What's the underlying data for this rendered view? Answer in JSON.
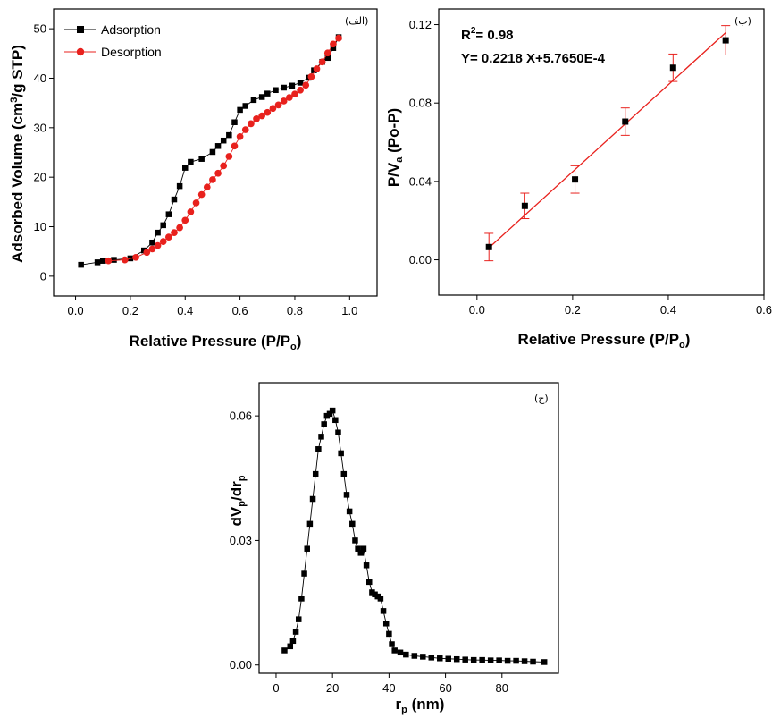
{
  "chart_data": [
    {
      "type": "line",
      "panel_label": "(الف)",
      "xlabel_main": "Relative Pressure (P/P",
      "xlabel_sub": "o",
      "xlabel_end": ")",
      "ylabel_main": "Adsorbed Volume (cm",
      "ylabel_sup": "3",
      "ylabel_end": "/g STP)",
      "xlim": [
        -0.08,
        1.1
      ],
      "ylim": [
        -4,
        54
      ],
      "xticks": [
        "0.0",
        "0.2",
        "0.4",
        "0.6",
        "0.8",
        "1.0"
      ],
      "xtick_values": [
        0.0,
        0.2,
        0.4,
        0.6,
        0.8,
        1.0
      ],
      "yticks": [
        "0",
        "10",
        "20",
        "30",
        "40",
        "50"
      ],
      "ytick_values": [
        0,
        10,
        20,
        30,
        40,
        50
      ],
      "legend_position": "top-left",
      "series": [
        {
          "name": "Adsorption",
          "color": "#000000",
          "marker": "square",
          "x": [
            0.02,
            0.08,
            0.1,
            0.14,
            0.2,
            0.25,
            0.28,
            0.3,
            0.32,
            0.34,
            0.36,
            0.38,
            0.4,
            0.42,
            0.46,
            0.5,
            0.52,
            0.54,
            0.56,
            0.58,
            0.6,
            0.62,
            0.65,
            0.68,
            0.7,
            0.73,
            0.76,
            0.79,
            0.82,
            0.85,
            0.87,
            0.9,
            0.92,
            0.94,
            0.96
          ],
          "y": [
            2.3,
            2.8,
            3.1,
            3.3,
            3.6,
            5.2,
            6.8,
            8.8,
            10.3,
            12.5,
            15.5,
            18.2,
            21.9,
            23.1,
            23.7,
            25.1,
            26.3,
            27.4,
            28.5,
            31.1,
            33.6,
            34.4,
            35.6,
            36.2,
            36.9,
            37.6,
            38.1,
            38.5,
            39.1,
            40.1,
            41.6,
            43.3,
            44.1,
            46.1,
            48.3
          ]
        },
        {
          "name": "Desorption",
          "color": "#e8211d",
          "marker": "circle",
          "x": [
            0.12,
            0.18,
            0.22,
            0.26,
            0.28,
            0.3,
            0.32,
            0.34,
            0.36,
            0.38,
            0.4,
            0.42,
            0.44,
            0.46,
            0.48,
            0.5,
            0.52,
            0.54,
            0.56,
            0.58,
            0.6,
            0.62,
            0.64,
            0.66,
            0.68,
            0.7,
            0.72,
            0.74,
            0.76,
            0.78,
            0.8,
            0.82,
            0.84,
            0.86,
            0.88,
            0.9,
            0.92,
            0.94,
            0.96
          ],
          "y": [
            3.1,
            3.3,
            3.8,
            4.8,
            5.5,
            6.2,
            7.0,
            7.9,
            8.8,
            9.8,
            11.3,
            13.0,
            14.8,
            16.5,
            18.0,
            19.5,
            20.8,
            22.3,
            24.2,
            26.3,
            28.2,
            29.6,
            30.8,
            31.8,
            32.4,
            33.1,
            33.9,
            34.6,
            35.4,
            36.1,
            36.8,
            37.6,
            38.6,
            40.3,
            41.9,
            43.3,
            45.1,
            46.9,
            48.1
          ]
        }
      ]
    },
    {
      "type": "scatter",
      "panel_label": "(ب)",
      "xlabel_main": "Relative Pressure (P/P",
      "xlabel_sub": "o",
      "xlabel_end": ")",
      "ylabel_main": "P/V",
      "ylabel_sub": "a",
      "ylabel_end": " (Po-P)",
      "xlim": [
        -0.08,
        0.6
      ],
      "ylim": [
        -0.018,
        0.128
      ],
      "xticks": [
        "0.0",
        "0.2",
        "0.4",
        "0.6"
      ],
      "xtick_values": [
        0.0,
        0.2,
        0.4,
        0.6
      ],
      "yticks": [
        "0.00",
        "0.04",
        "0.08",
        "0.12"
      ],
      "ytick_values": [
        0.0,
        0.04,
        0.08,
        0.12
      ],
      "annotation_r2_main": "R",
      "annotation_r2_sup": "2",
      "annotation_r2_end": "= 0.98",
      "annotation_equation": "Y= 0.2218 X+5.7650E-4",
      "fit": {
        "slope": 0.2218,
        "intercept": 0.0005765,
        "x_range": [
          0.025,
          0.52
        ],
        "color": "#e8211d"
      },
      "series": [
        {
          "name": "",
          "color": "#000000",
          "marker": "square",
          "x": [
            0.025,
            0.1,
            0.205,
            0.31,
            0.41,
            0.52
          ],
          "y": [
            0.0065,
            0.0275,
            0.041,
            0.0705,
            0.098,
            0.112
          ],
          "error": [
            0.007,
            0.0065,
            0.007,
            0.007,
            0.007,
            0.0075
          ]
        }
      ]
    },
    {
      "type": "line",
      "panel_label": "(ج)",
      "xlabel_main": "r",
      "xlabel_sub": "p",
      "xlabel_end": " (nm)",
      "ylabel_main": "dV",
      "ylabel_sub": "p",
      "ylabel_mid": "/dr",
      "ylabel_sub2": "p",
      "xlim": [
        -6,
        100
      ],
      "ylim": [
        -0.002,
        0.068
      ],
      "xticks": [
        "0",
        "20",
        "40",
        "60",
        "80"
      ],
      "xtick_values": [
        0,
        20,
        40,
        60,
        80
      ],
      "yticks": [
        "0.00",
        "0.03",
        "0.06"
      ],
      "ytick_values": [
        0.0,
        0.03,
        0.06
      ],
      "series": [
        {
          "name": "",
          "color": "#000000",
          "marker": "square",
          "x": [
            3,
            5,
            6,
            7,
            8,
            9,
            10,
            11,
            12,
            13,
            14,
            15,
            16,
            17,
            18,
            19,
            20,
            21,
            22,
            23,
            24,
            25,
            26,
            27,
            28,
            29,
            30,
            31,
            32,
            33,
            34,
            35,
            36,
            37,
            38,
            39,
            40,
            41,
            42,
            44,
            46,
            49,
            52,
            55,
            58,
            61,
            64,
            67,
            70,
            73,
            76,
            79,
            82,
            85,
            88,
            91,
            95
          ],
          "y": [
            0.0035,
            0.0045,
            0.0058,
            0.008,
            0.011,
            0.016,
            0.022,
            0.028,
            0.034,
            0.04,
            0.046,
            0.052,
            0.055,
            0.058,
            0.06,
            0.0605,
            0.0613,
            0.059,
            0.056,
            0.051,
            0.046,
            0.041,
            0.037,
            0.034,
            0.03,
            0.028,
            0.027,
            0.028,
            0.024,
            0.02,
            0.0175,
            0.017,
            0.0165,
            0.016,
            0.013,
            0.01,
            0.0075,
            0.005,
            0.0035,
            0.003,
            0.0025,
            0.0022,
            0.002,
            0.0018,
            0.0016,
            0.0015,
            0.0014,
            0.0013,
            0.0012,
            0.0012,
            0.0011,
            0.0011,
            0.001,
            0.001,
            0.0009,
            0.0008,
            0.0007
          ]
        }
      ]
    }
  ]
}
